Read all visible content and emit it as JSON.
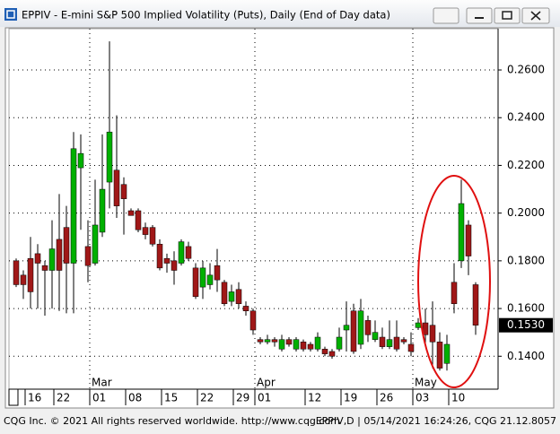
{
  "window_title": "EPPIV - E-mini S&P 500 Implied Volatility (Puts), Daily (End of Day data)",
  "footer_left": "CQG Inc. © 2021 All rights reserved worldwide. http://www.cqg.com",
  "footer_right": "EPPIV,D | 05/14/2021 16:24:26, CQG 21.12.8057",
  "chart_data": {
    "type": "candlestick",
    "categories": [
      null,
      null,
      "16",
      null,
      null,
      null,
      "22",
      null,
      null,
      null,
      null,
      "01",
      null,
      null,
      null,
      null,
      "08",
      null,
      null,
      null,
      null,
      "15",
      null,
      null,
      null,
      null,
      "22",
      null,
      null,
      null,
      null,
      "29",
      null,
      null,
      "01",
      null,
      null,
      null,
      null,
      null,
      null,
      "12",
      null,
      null,
      null,
      null,
      "19",
      null,
      null,
      null,
      null,
      "26",
      null,
      null,
      null,
      null,
      "03",
      null,
      null,
      null,
      null,
      "10",
      null,
      null,
      null
    ],
    "month_ticks": [
      {
        "value": 11,
        "label": "Mar"
      },
      {
        "value": 34,
        "label": "Apr"
      },
      {
        "value": 56,
        "label": "May"
      }
    ],
    "open": [
      0.18,
      0.174,
      0.181,
      0.183,
      0.178,
      0.176,
      0.189,
      0.194,
      0.179,
      0.219,
      0.186,
      0.179,
      0.192,
      0.213,
      0.218,
      0.212,
      0.201,
      0.201,
      0.194,
      0.194,
      0.187,
      0.181,
      0.18,
      0.179,
      0.186,
      0.177,
      0.169,
      0.17,
      0.178,
      0.171,
      0.163,
      0.168,
      0.161,
      0.159,
      0.147,
      0.146,
      0.147,
      0.143,
      0.147,
      0.143,
      0.146,
      0.145,
      0.143,
      0.143,
      0.142,
      0.143,
      0.151,
      0.159,
      0.145,
      0.155,
      0.147,
      0.148,
      0.144,
      0.148,
      0.147,
      0.145,
      0.152,
      0.154,
      0.153,
      0.146,
      0.137,
      0.171,
      0.18,
      0.195,
      0.17
    ],
    "high": [
      0.181,
      0.176,
      0.19,
      0.187,
      0.18,
      0.197,
      0.208,
      0.203,
      0.234,
      0.233,
      0.197,
      0.214,
      0.233,
      0.272,
      0.241,
      0.215,
      0.202,
      0.202,
      0.196,
      0.195,
      0.189,
      0.183,
      0.184,
      0.189,
      0.188,
      0.179,
      0.18,
      0.179,
      0.185,
      0.172,
      0.17,
      0.171,
      0.163,
      0.16,
      0.148,
      0.149,
      0.148,
      0.149,
      0.148,
      0.148,
      0.147,
      0.146,
      0.15,
      0.144,
      0.143,
      0.152,
      0.163,
      0.162,
      0.164,
      0.157,
      0.155,
      0.152,
      0.155,
      0.155,
      0.148,
      0.15,
      0.156,
      0.16,
      0.163,
      0.15,
      0.149,
      0.179,
      0.214,
      0.197,
      0.171
    ],
    "low": [
      0.169,
      0.164,
      0.16,
      0.16,
      0.157,
      0.16,
      0.159,
      0.158,
      0.158,
      0.193,
      0.171,
      0.178,
      0.19,
      0.202,
      0.198,
      0.191,
      0.199,
      0.192,
      0.189,
      0.186,
      0.176,
      0.175,
      0.17,
      0.178,
      0.18,
      0.164,
      0.164,
      0.168,
      0.167,
      0.161,
      0.161,
      0.16,
      0.157,
      0.149,
      0.145,
      0.145,
      0.144,
      0.142,
      0.144,
      0.142,
      0.142,
      0.142,
      0.142,
      0.14,
      0.139,
      0.142,
      0.142,
      0.141,
      0.143,
      0.146,
      0.146,
      0.143,
      0.143,
      0.142,
      0.145,
      0.14,
      0.151,
      0.144,
      0.135,
      0.134,
      0.134,
      0.158,
      0.177,
      0.174,
      0.149
    ],
    "close": [
      0.17,
      0.17,
      0.167,
      0.179,
      0.176,
      0.185,
      0.176,
      0.179,
      0.227,
      0.225,
      0.178,
      0.195,
      0.21,
      0.234,
      0.203,
      0.206,
      0.199,
      0.193,
      0.191,
      0.187,
      0.177,
      0.179,
      0.176,
      0.188,
      0.181,
      0.165,
      0.177,
      0.174,
      0.172,
      0.162,
      0.167,
      0.162,
      0.159,
      0.151,
      0.146,
      0.147,
      0.146,
      0.147,
      0.145,
      0.147,
      0.143,
      0.143,
      0.148,
      0.141,
      0.14,
      0.148,
      0.153,
      0.142,
      0.159,
      0.149,
      0.15,
      0.144,
      0.147,
      0.143,
      0.146,
      0.142,
      0.154,
      0.149,
      0.146,
      0.135,
      0.145,
      0.162,
      0.204,
      0.182,
      0.153
    ],
    "up_color": "#00b000",
    "down_color": "#a01818",
    "ylim": [
      0.1262,
      0.2773
    ],
    "yticks": [
      {
        "value": 0.14,
        "label": "0.1400"
      },
      {
        "value": 0.16,
        "label": "0.1600"
      },
      {
        "value": 0.18,
        "label": "0.1800"
      },
      {
        "value": 0.2,
        "label": "0.2000"
      },
      {
        "value": 0.22,
        "label": "0.2200"
      },
      {
        "value": 0.24,
        "label": "0.2400"
      },
      {
        "value": 0.26,
        "label": "0.2600"
      }
    ],
    "last_price": {
      "value": 0.153,
      "label": "0.1530"
    },
    "grid": true
  }
}
